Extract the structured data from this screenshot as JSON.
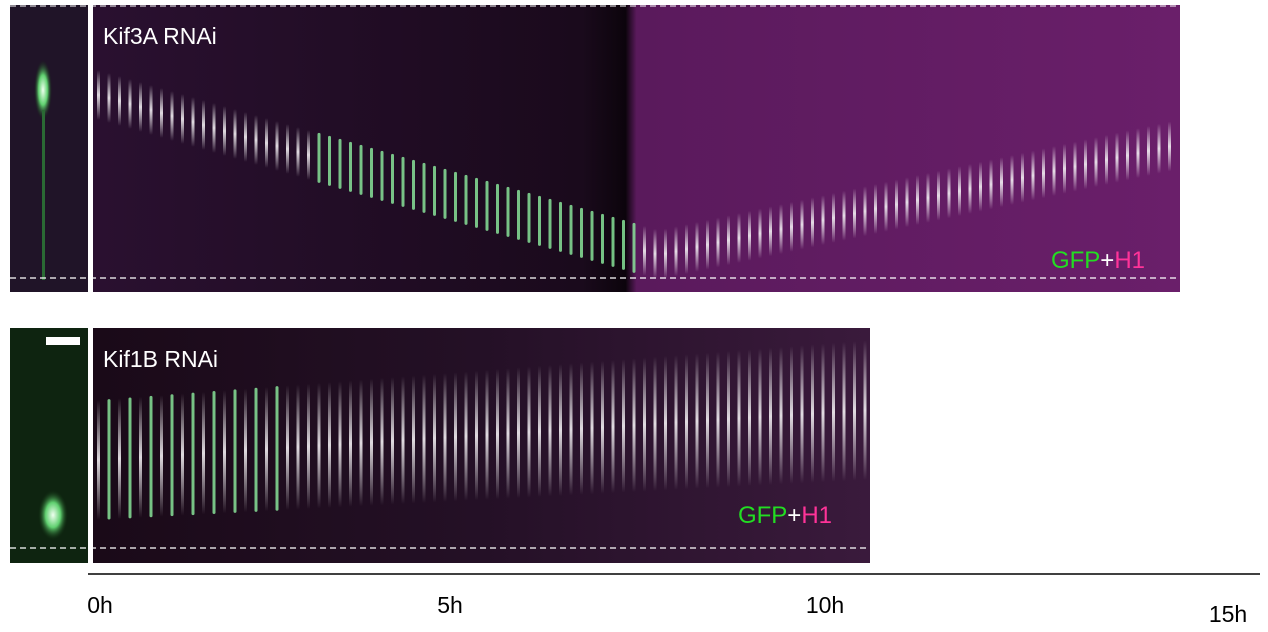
{
  "panels": [
    {
      "label": "Kif3A RNAi",
      "legend": {
        "gfp": "GFP",
        "plus": "+",
        "h1": "H1"
      }
    },
    {
      "label": "Kif1B RNAi",
      "legend": {
        "gfp": "GFP",
        "plus": "+",
        "h1": "H1"
      }
    }
  ],
  "time_axis": {
    "labels": [
      "0h",
      "5h",
      "10h",
      "15h"
    ]
  }
}
